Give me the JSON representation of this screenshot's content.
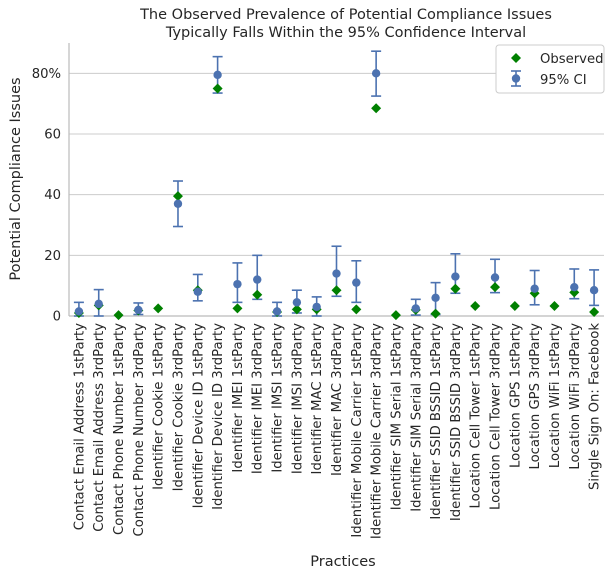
{
  "chart_data": {
    "type": "scatter",
    "title": [
      "The Observed Prevalence of Potential Compliance Issues",
      "Typically Falls Within the 95% Confidence Interval"
    ],
    "xlabel": "Practices",
    "ylabel": "Potential Compliance Issues",
    "ylim": [
      0,
      90
    ],
    "yticks": [
      {
        "value": 0,
        "label": "0"
      },
      {
        "value": 20,
        "label": "20"
      },
      {
        "value": 40,
        "label": "40"
      },
      {
        "value": 60,
        "label": "60"
      },
      {
        "value": 80,
        "label": "80%"
      }
    ],
    "legend_position": "top-right",
    "categories": [
      "Contact Email Address 1stParty",
      "Contact Email Address 3rdParty",
      "Contact Phone Number 1stParty",
      "Contact Phone Number 3rdParty",
      "Identifier Cookie 1stParty",
      "Identifier Cookie 3rdParty",
      "Identifier Device ID 1stParty",
      "Identifier Device ID 3rdParty",
      "Identifier IMEI 1stParty",
      "Identifier IMEI 3rdParty",
      "Identifier IMSI 1stParty",
      "Identifier IMSI 3rdParty",
      "Identifier MAC 1stParty",
      "Identifier MAC 3rdParty",
      "Identifier Mobile Carrier 1stParty",
      "Identifier Mobile Carrier 3rdParty",
      "Identifier SIM Serial 1stParty",
      "Identifier SIM Serial 3rdParty",
      "Identifier SSID BSSID 1stParty",
      "Identifier SSID BSSID 3rdParty",
      "Location Cell Tower 1stParty",
      "Location Cell Tower 3rdParty",
      "Location GPS 1stParty",
      "Location GPS 3rdParty",
      "Location WiFi 1stParty",
      "Location WiFi 3rdParty",
      "Single Sign On: Facebook"
    ],
    "series": [
      {
        "name": "Observed",
        "marker": "diamond",
        "color": "#008000",
        "values": [
          1.0,
          3.5,
          0.3,
          1.8,
          2.5,
          39.5,
          8.5,
          75,
          2.5,
          7.0,
          1.3,
          2.2,
          2.2,
          8.5,
          2.2,
          68.5,
          0.3,
          2.0,
          0.8,
          9.0,
          3.3,
          9.5,
          3.3,
          7.5,
          3.3,
          7.8,
          1.3
        ]
      },
      {
        "name": "95% CI",
        "marker": "circle",
        "color": "#4c72b0",
        "values": [
          1.5,
          4.0,
          null,
          2.0,
          null,
          37.0,
          8.0,
          79.5,
          10.5,
          12.0,
          1.5,
          4.5,
          3.0,
          14.0,
          11.0,
          80.0,
          null,
          2.5,
          6.0,
          13.0,
          null,
          12.7,
          null,
          9.0,
          null,
          9.5,
          8.5
        ],
        "ci_low": [
          0.0,
          0.0,
          null,
          0.5,
          null,
          29.5,
          5.0,
          73.5,
          4.5,
          5.5,
          0.0,
          1.0,
          0.0,
          6.5,
          4.5,
          72.5,
          null,
          0.3,
          0.5,
          7.5,
          null,
          7.7,
          null,
          3.7,
          null,
          5.7,
          3.5
        ],
        "ci_high": [
          4.5,
          8.7,
          null,
          4.3,
          null,
          44.5,
          13.7,
          85.5,
          17.5,
          20.0,
          4.5,
          8.5,
          6.3,
          23.0,
          18.2,
          87.3,
          null,
          5.5,
          11.0,
          20.5,
          null,
          18.7,
          null,
          15.0,
          null,
          15.5,
          15.2
        ]
      }
    ]
  }
}
